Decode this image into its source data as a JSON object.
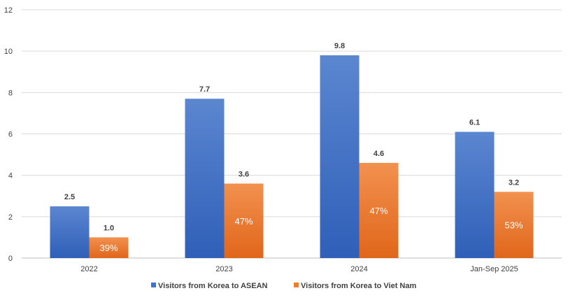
{
  "chart_data": {
    "type": "bar",
    "categories": [
      "2022",
      "2023",
      "2024",
      "Jan-Sep 2025"
    ],
    "series": [
      {
        "name": "Visitors from Korea to ASEAN",
        "values": [
          2.5,
          7.7,
          9.8,
          6.1
        ],
        "labels": [
          "2.5",
          "7.7",
          "9.8",
          "6.1"
        ],
        "color": "#4472C4"
      },
      {
        "name": "Visitors from Korea to Viet Nam",
        "values": [
          1.0,
          3.6,
          4.6,
          3.2
        ],
        "labels": [
          "1.0",
          "3.6",
          "4.6",
          "3.2"
        ],
        "share_labels": [
          "39%",
          "47%",
          "47%",
          "53%"
        ],
        "color": "#ED7D31"
      }
    ],
    "ylim": [
      0,
      12
    ],
    "yticks": [
      "0",
      "2",
      "4",
      "6",
      "8",
      "10",
      "12"
    ],
    "grid": true,
    "legend": "bottom-center"
  }
}
